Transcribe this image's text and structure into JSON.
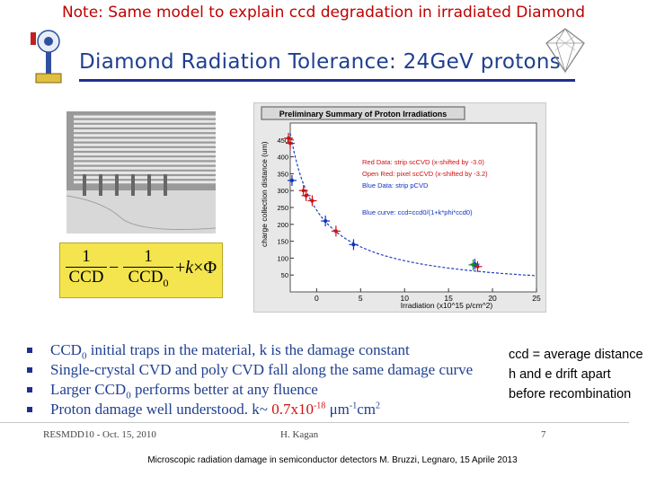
{
  "note_title": "Note: Same model to explain ccd degradation  in irradiated Diamond",
  "slide_title": "Diamond Radiation Tolerance: 24GeV protons",
  "formula": {
    "one": "1",
    "ccd": "CCD",
    "ccd0": "CCD",
    "sub0": "0",
    "minus": "−",
    "plus": "+",
    "k": "k",
    "times": "×",
    "phi": "Φ"
  },
  "plot": {
    "title": "Preliminary Summary of Proton Irradiations",
    "ylabel": "charge collection distance (um)",
    "xlabel": "Irradiation (x10^15 p/cm^2)",
    "legend": {
      "red": "Red Data: strip scCVD  (x-shifted by -3.0)",
      "open_red": "Open Red: pixel scCVD (x-shifted by -3.2)",
      "blue": "Blue Data: strip pCVD",
      "curve": "Blue curve: ccd=ccd0/(1+k*phi*ccd0)"
    }
  },
  "chart_data": {
    "type": "scatter",
    "title": "Preliminary Summary of Proton Irradiations",
    "xlabel": "Irradiation (x10^15 p/cm^2)",
    "ylabel": "charge collection distance (um)",
    "xlim": [
      -3,
      25
    ],
    "ylim": [
      0,
      500
    ],
    "x_ticks": [
      "0",
      "5",
      "10",
      "15",
      "20",
      "25"
    ],
    "y_ticks": [
      "50",
      "100",
      "150",
      "200",
      "250",
      "300",
      "350",
      "400",
      "450"
    ],
    "colors": {
      "red": "#d01010",
      "blue": "#1030c0",
      "green": "#109020",
      "curve": "#2040c0"
    },
    "series": [
      {
        "name": "Red Data: strip scCVD  (x-shifted by -3.0)",
        "color": "#d01010",
        "x": [
          -3.0,
          -1.2,
          -0.5,
          2.2,
          18.3
        ],
        "y": [
          440,
          285,
          270,
          180,
          75
        ]
      },
      {
        "name": "Open Red: pixel scCVD (x-shifted by -3.2)",
        "color": "#d01010",
        "x": [
          -3.2,
          -1.5
        ],
        "y": [
          455,
          300
        ]
      },
      {
        "name": "Blue Data: strip pCVD",
        "color": "#1030c0",
        "x": [
          -2.8,
          1.0,
          4.2,
          18.0
        ],
        "y": [
          330,
          210,
          140,
          82
        ]
      },
      {
        "name": "",
        "color": "#109020",
        "x": [
          17.8
        ],
        "y": [
          80
        ]
      }
    ],
    "curve": {
      "name": "Blue curve: ccd=ccd0/(1+k*phi*ccd0)",
      "ccd0": 470,
      "k": 0.00067,
      "x_offset": 3.0
    }
  },
  "bullets": [
    {
      "main": "CCD",
      "sub": "0",
      "rest": " initial traps in the material, k is the damage constant"
    },
    {
      "main": "Single-crystal CVD and poly CVD fall along the same damage curve",
      "sub": "",
      "rest": ""
    },
    {
      "main": "Larger CCD",
      "sub": "0",
      "rest": " performs better at any fluence"
    },
    {
      "main": "Proton damage well understood. k~ ",
      "red": "0.7x10",
      "sup1": "-18",
      "rest": " μm",
      "sup2": "-1",
      "rest2": "cm",
      "sup3": "2"
    }
  ],
  "ccd_note": "ccd = average distance  h and e drift apart before recombination",
  "footer": {
    "left": "RESMDD10 - Oct. 15, 2010",
    "middle": "H. Kagan",
    "page": "7"
  },
  "citation": "Microscopic radiation damage in semiconductor detectors  M. Bruzzi, Legnaro, 15 Aprile 2013"
}
